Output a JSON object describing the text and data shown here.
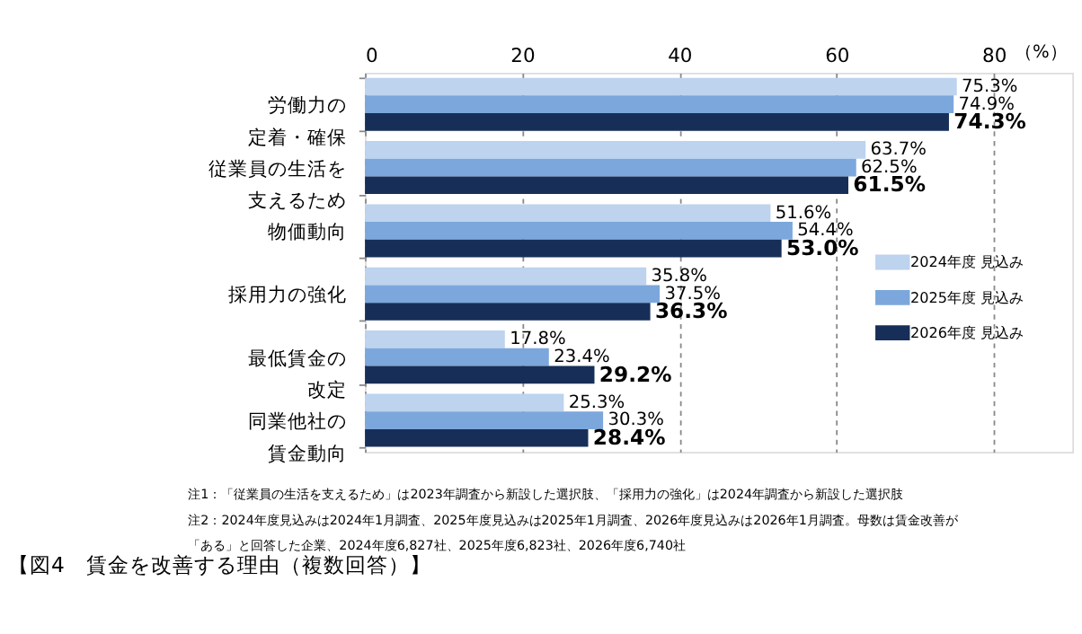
{
  "chart_data": {
    "type": "bar",
    "orientation": "horizontal",
    "title": "【図4　賃金を改善する理由（複数回答）】",
    "xlabel": "（%）",
    "categories": [
      "労働力の定着・確保",
      "従業員の生活を支えるため",
      "物価動向",
      "採用力の強化",
      "最低賃金の改定",
      "同業他社の賃金動向"
    ],
    "series": [
      {
        "name": "2024年度 見込み",
        "color": "#bdd3ee",
        "values": [
          75.3,
          63.7,
          51.6,
          35.8,
          17.8,
          25.3
        ],
        "value_labels": [
          "75.3%",
          "63.7%",
          "51.6%",
          "35.8%",
          "17.8%",
          "25.3%"
        ]
      },
      {
        "name": "2025年度 見込み",
        "color": "#7ca7dc",
        "values": [
          74.9,
          62.5,
          54.4,
          37.5,
          23.4,
          30.3
        ],
        "value_labels": [
          "74.9%",
          "62.5%",
          "54.4%",
          "37.5%",
          "23.4%",
          "30.3%"
        ]
      },
      {
        "name": "2026年度 見込み",
        "color": "#172f58",
        "values": [
          74.3,
          61.5,
          53.0,
          36.3,
          29.2,
          28.4
        ],
        "value_labels": [
          "74.3%",
          "61.5%",
          "53.0%",
          "36.3%",
          "29.2%",
          "28.4%"
        ]
      }
    ],
    "xlim": [
      0,
      90
    ],
    "xticks": [
      0,
      20,
      40,
      60,
      80
    ],
    "grid": "x",
    "legend": "bottom right",
    "annotations": [
      "注1：「従業員の生活を支えるため」は2023年調査から新設した選択肢、「採用力の強化」は2024年調査から新設した選択肢",
      "注2：2024年度見込みは2024年1月調査、2025年度見込みは2025年1月調査、2026年度見込みは2026年1月調査。母数は賃金改善が",
      "「ある」と回答した企業、2024年度6,827社、2025年度6,823社、2026年度6,740社"
    ]
  }
}
